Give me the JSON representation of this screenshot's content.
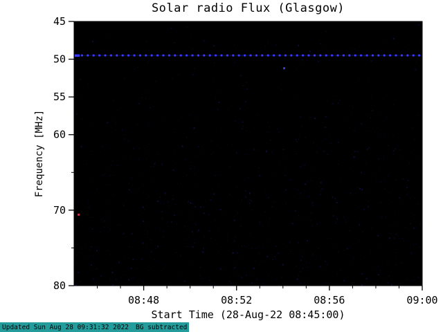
{
  "page": {
    "background": "#ffffff"
  },
  "chart_data": {
    "type": "heatmap",
    "title": "Solar radio Flux (Glasgow)",
    "xlabel": "Start Time (28-Aug-22 08:45:00)",
    "ylabel": "Frequency [MHz]",
    "x_start_label": "08:45:00",
    "x_span_minutes": 15,
    "x_ticks": [
      {
        "minute": 3,
        "label": "08:48"
      },
      {
        "minute": 7,
        "label": "08:52"
      },
      {
        "minute": 11,
        "label": "08:56"
      },
      {
        "minute": 15,
        "label": "09:00"
      }
    ],
    "x_minor_ticks_minutes": [
      1,
      2,
      4,
      5,
      6,
      8,
      9,
      10,
      12,
      13,
      14
    ],
    "ylim": [
      45,
      80
    ],
    "y_ticks": [
      {
        "value": 45,
        "label": "45"
      },
      {
        "value": 50,
        "label": "50"
      },
      {
        "value": 55,
        "label": "55"
      },
      {
        "value": 60,
        "label": "60"
      },
      {
        "value": 70,
        "label": "70"
      },
      {
        "value": 80,
        "label": "80"
      }
    ],
    "y_minor_ticks": [
      65,
      75
    ],
    "plot_background": "#000000",
    "grid": false,
    "legend": false,
    "features": [
      {
        "kind": "dotted_horizontal_line",
        "frequency_mhz": 49.5,
        "color": "#3a3aff",
        "underline_color": "#161680",
        "dot_spacing_px": 8.4
      },
      {
        "kind": "point",
        "minute": 9.05,
        "frequency_mhz": 51.2,
        "color": "#3a3acc",
        "size": 3
      },
      {
        "kind": "point",
        "minute": 0.2,
        "frequency_mhz": 70.6,
        "color": "#cc3355",
        "size": 3
      }
    ],
    "noise": {
      "color_a": "#10104e",
      "color_b": "#191970",
      "density": 2200,
      "bias": "stronger toward low frequencies (bottom)"
    }
  },
  "footer": {
    "updated_text": "Updated Sun Aug 28 09:31:32 2022",
    "note_text": "BG subtracted",
    "background": "#259c9c"
  }
}
